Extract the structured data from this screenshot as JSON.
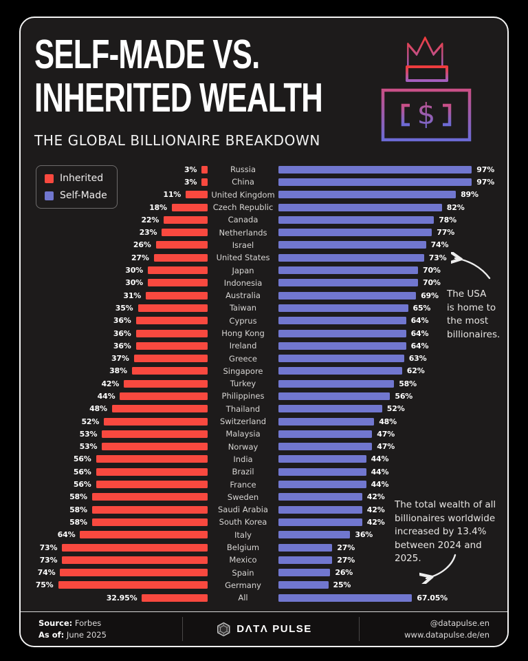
{
  "header": {
    "title_line1": "SELF-MADE VS.",
    "title_line2": "INHERITED WEALTH",
    "subtitle": "THE GLOBAL BILLIONAIRE BREAKDOWN"
  },
  "legend": {
    "inherited_label": "Inherited",
    "self_made_label": "Self-Made"
  },
  "colors": {
    "inherited": "#F9493F",
    "self_made": "#7177CF",
    "panel_bg": "#1D1B1B",
    "outer_bg": "#000000",
    "crown_gradient_top": "#EF3B3B",
    "crown_gradient_bottom": "#A35FBF",
    "bill_gradient_top": "#C94F86",
    "bill_gradient_bottom": "#6C6BD6"
  },
  "chart_data": {
    "type": "bar",
    "orientation": "diverging-horizontal",
    "value_suffix": "%",
    "axis_max": 100,
    "legend_position": "top-left",
    "categories": [
      "Russia",
      "China",
      "United Kingdom",
      "Czech Republic",
      "Canada",
      "Netherlands",
      "Israel",
      "United States",
      "Japan",
      "Indonesia",
      "Australia",
      "Taiwan",
      "Cyprus",
      "Hong Kong",
      "Ireland",
      "Greece",
      "Singapore",
      "Turkey",
      "Philippines",
      "Thailand",
      "Switzerland",
      "Malaysia",
      "Norway",
      "India",
      "Brazil",
      "France",
      "Sweden",
      "Saudi Arabia",
      "South Korea",
      "Italy",
      "Belgium",
      "Mexico",
      "Spain",
      "Germany",
      "All"
    ],
    "series": [
      {
        "name": "Inherited",
        "values": [
          3,
          3,
          11,
          18,
          22,
          23,
          26,
          27,
          30,
          30,
          31,
          35,
          36,
          36,
          36,
          37,
          38,
          42,
          44,
          48,
          52,
          53,
          53,
          56,
          56,
          56,
          58,
          58,
          58,
          64,
          73,
          73,
          74,
          75,
          32.95
        ]
      },
      {
        "name": "Self-Made",
        "values": [
          97,
          97,
          89,
          82,
          78,
          77,
          74,
          73,
          70,
          70,
          69,
          65,
          64,
          64,
          64,
          63,
          62,
          58,
          56,
          52,
          48,
          47,
          47,
          44,
          44,
          44,
          42,
          42,
          42,
          36,
          27,
          27,
          26,
          25,
          67.05
        ]
      }
    ]
  },
  "annotations": {
    "usa": {
      "lines": [
        "The USA",
        "is home to",
        "the most",
        "billionaires."
      ]
    },
    "wealth": {
      "lines": [
        "The total wealth of all",
        "billionaires worldwide",
        "increased by 13.4%",
        "between 2024 and",
        "2025."
      ]
    }
  },
  "footer": {
    "source_label": "Source:",
    "source_value": "Forbes",
    "asof_label": "As of:",
    "asof_value": "June 2025",
    "brand_left": "DΛTΛ",
    "brand_right": "PULSE",
    "handle": "@datapulse.en",
    "website": "www.datapulse.de/en"
  }
}
